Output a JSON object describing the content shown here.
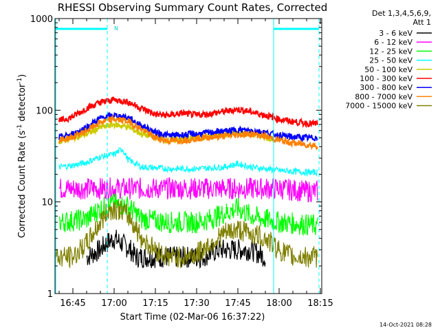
{
  "chart_data": {
    "type": "line",
    "title": "RHESSI Observing Summary Count Rates, Corrected",
    "xlabel": "Start Time (02-Mar-06 16:37:22)",
    "ylabel_main": "Corrected Count Rate (s",
    "ylabel_sup1": "-1",
    "ylabel_mid": " detector",
    "ylabel_sup2": "-1",
    "ylabel_end": ")",
    "y_scale": "log",
    "ylim": [
      1,
      1000
    ],
    "y_ticks": [
      {
        "value": 1,
        "label": "1"
      },
      {
        "value": 10,
        "label": "10"
      },
      {
        "value": 100,
        "label": "100"
      },
      {
        "value": 1000,
        "label": "1000"
      }
    ],
    "xlim_minutes_after_1630": [
      8.5,
      105.5
    ],
    "x_ticks": [
      {
        "minutes": 15,
        "label": "16:45"
      },
      {
        "minutes": 30,
        "label": "17:00"
      },
      {
        "minutes": 45,
        "label": "17:15"
      },
      {
        "minutes": 60,
        "label": "17:30"
      },
      {
        "minutes": 75,
        "label": "17:45"
      },
      {
        "minutes": 90,
        "label": "18:00"
      },
      {
        "minutes": 105,
        "label": "18:15"
      }
    ],
    "legend_header": [
      "Det 1,3,4,5,6,9,",
      "Att 1"
    ],
    "night_bars": [
      {
        "start_minutes": 8.5,
        "end_minutes": 27.5
      },
      {
        "start_minutes": 88,
        "end_minutes": 104.5
      }
    ],
    "night_label": "N",
    "marker_lines_minutes": [
      27.5,
      88,
      104.5
    ],
    "series": [
      {
        "name": "3 - 6 keV",
        "color": "#000000",
        "x": [
          20,
          25,
          27,
          30,
          33,
          36,
          38,
          45,
          55,
          62,
          68,
          75,
          80,
          85
        ],
        "y": [
          2.5,
          3,
          3.5,
          4,
          3.5,
          3,
          2.5,
          2.5,
          2.5,
          2.5,
          3,
          3,
          3,
          2.5
        ]
      },
      {
        "name": "6 - 12 keV",
        "color": "#ff00ff",
        "x": [
          10,
          20,
          30,
          40,
          50,
          60,
          70,
          80,
          90,
          100,
          104
        ],
        "y": [
          14,
          14,
          14,
          14,
          14,
          14,
          14,
          14,
          14,
          13,
          13
        ]
      },
      {
        "name": "12 - 25 keV",
        "color": "#00ff00",
        "x": [
          10,
          20,
          25,
          30,
          35,
          40,
          50,
          60,
          65,
          70,
          75,
          80,
          90,
          104
        ],
        "y": [
          6,
          6.5,
          8.5,
          9.5,
          9,
          6.5,
          6,
          6,
          6.5,
          7.5,
          8.5,
          7,
          6,
          5.5
        ]
      },
      {
        "name": "25 - 50 keV",
        "color": "#00ffff",
        "x": [
          10,
          15,
          20,
          25,
          30,
          33,
          35,
          40,
          50,
          60,
          70,
          75,
          80,
          90,
          100,
          104
        ],
        "y": [
          24,
          25,
          27,
          31,
          33,
          38,
          29,
          24,
          23,
          23,
          24,
          26,
          24,
          22,
          21,
          21
        ]
      },
      {
        "name": "50 - 100 keV",
        "color": "#cccc00",
        "x": [
          10,
          20,
          25,
          30,
          35,
          40,
          50,
          60,
          70,
          75,
          80,
          85,
          88
        ],
        "y": [
          46,
          55,
          65,
          70,
          66,
          55,
          47,
          50,
          55,
          56,
          55,
          52,
          48
        ]
      },
      {
        "name": "100 - 300 keV",
        "color": "#ff0000",
        "x": [
          10,
          15,
          20,
          25,
          30,
          35,
          40,
          45,
          50,
          55,
          60,
          65,
          70,
          75,
          80,
          85,
          90,
          95,
          100,
          104
        ],
        "y": [
          76,
          85,
          105,
          122,
          130,
          123,
          105,
          90,
          88,
          93,
          88,
          92,
          97,
          102,
          96,
          88,
          80,
          75,
          72,
          71
        ]
      },
      {
        "name": "300 - 800 keV",
        "color": "#0000ff",
        "x": [
          10,
          15,
          20,
          25,
          30,
          35,
          40,
          45,
          50,
          55,
          60,
          65,
          70,
          75,
          80,
          85,
          90,
          95,
          100,
          104
        ],
        "y": [
          50,
          55,
          65,
          82,
          88,
          83,
          68,
          57,
          53,
          54,
          55,
          57,
          59,
          61,
          60,
          57,
          53,
          51,
          50,
          50
        ]
      },
      {
        "name": "800 - 7000 keV",
        "color": "#ff8000",
        "x": [
          10,
          15,
          20,
          25,
          30,
          35,
          40,
          45,
          50,
          55,
          60,
          65,
          70,
          75,
          80,
          85,
          90,
          95,
          100,
          104
        ],
        "y": [
          47,
          51,
          60,
          74,
          80,
          76,
          62,
          50,
          46,
          47,
          49,
          51,
          52,
          54,
          55,
          52,
          47,
          44,
          42,
          41
        ]
      },
      {
        "name": "7000 - 15000 keV",
        "color": "#808000",
        "x": [
          8.5,
          15,
          20,
          25,
          28,
          30,
          33,
          36,
          40,
          45,
          50,
          55,
          60,
          65,
          70,
          75,
          80,
          85,
          90,
          95,
          100,
          104
        ],
        "y": [
          2.5,
          2.5,
          3.5,
          6,
          8,
          8.5,
          8,
          6.5,
          4,
          3,
          2.5,
          2.5,
          2.7,
          3.5,
          4.5,
          5,
          4.5,
          4,
          3,
          2.5,
          2.5,
          2.5
        ]
      }
    ]
  },
  "footer_stamp": "14-Oct-2021 08:28"
}
